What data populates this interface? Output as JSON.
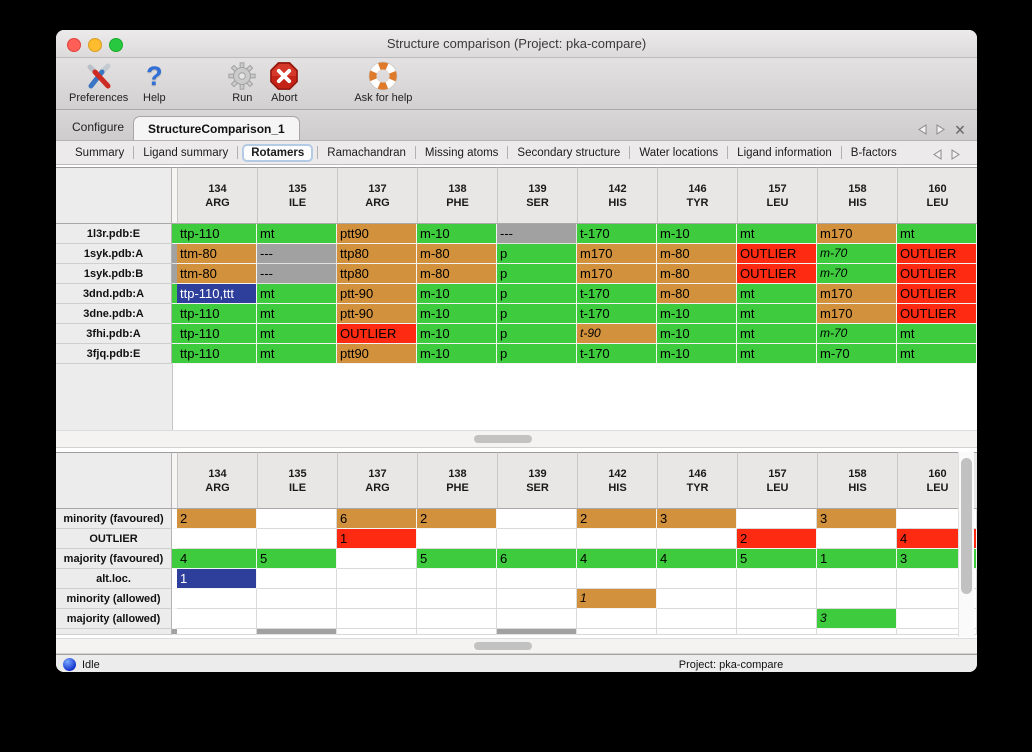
{
  "window": {
    "title": "Structure comparison (Project: pka-compare)"
  },
  "toolbar": {
    "items": [
      {
        "label": "Preferences",
        "icon": "tools-icon"
      },
      {
        "label": "Help",
        "icon": "question-icon"
      },
      {
        "label": "Run",
        "icon": "gear-icon"
      },
      {
        "label": "Abort",
        "icon": "abort-icon"
      },
      {
        "label": "Ask for help",
        "icon": "lifebuoy-icon"
      }
    ]
  },
  "tab_bar": {
    "tabs": [
      {
        "label": "Configure",
        "selected": false
      },
      {
        "label": "StructureComparison_1",
        "selected": true
      }
    ],
    "nav_icons": [
      "prev-arrow-icon",
      "next-arrow-icon",
      "close-icon"
    ]
  },
  "subtab_bar": {
    "tabs": [
      "Summary",
      "Ligand summary",
      "Rotamers",
      "Ramachandran",
      "Missing atoms",
      "Secondary structure",
      "Water locations",
      "Ligand information",
      "B-factors"
    ],
    "selected": "Rotamers",
    "nav_icons": [
      "prev-arrow-icon",
      "next-arrow-icon"
    ]
  },
  "columns": [
    {
      "number": "134",
      "residue": "ARG"
    },
    {
      "number": "135",
      "residue": "ILE"
    },
    {
      "number": "137",
      "residue": "ARG"
    },
    {
      "number": "138",
      "residue": "PHE"
    },
    {
      "number": "139",
      "residue": "SER"
    },
    {
      "number": "142",
      "residue": "HIS"
    },
    {
      "number": "146",
      "residue": "TYR"
    },
    {
      "number": "157",
      "residue": "LEU"
    },
    {
      "number": "158",
      "residue": "HIS"
    },
    {
      "number": "160",
      "residue": "LEU"
    }
  ],
  "rotamer_table": {
    "rows": [
      {
        "label": "1l3r.pdb:E",
        "edge": "green",
        "cells": [
          {
            "t": "ttp-110",
            "c": "green"
          },
          {
            "t": "mt",
            "c": "green"
          },
          {
            "t": "ptt90",
            "c": "orange"
          },
          {
            "t": "m-10",
            "c": "green"
          },
          {
            "t": "---",
            "c": "gray"
          },
          {
            "t": "t-170",
            "c": "green"
          },
          {
            "t": "m-10",
            "c": "green"
          },
          {
            "t": "mt",
            "c": "green"
          },
          {
            "t": "m170",
            "c": "orange"
          },
          {
            "t": "mt",
            "c": "green"
          }
        ]
      },
      {
        "label": "1syk.pdb:A",
        "edge": "gray",
        "cells": [
          {
            "t": "ttm-80",
            "c": "orange"
          },
          {
            "t": "---",
            "c": "gray"
          },
          {
            "t": "ttp80",
            "c": "orange"
          },
          {
            "t": "m-80",
            "c": "orange"
          },
          {
            "t": "p",
            "c": "green"
          },
          {
            "t": "m170",
            "c": "orange"
          },
          {
            "t": "m-80",
            "c": "orange"
          },
          {
            "t": "OUTLIER",
            "c": "red"
          },
          {
            "t": "m-70",
            "c": "green",
            "i": true
          },
          {
            "t": "OUTLIER",
            "c": "red"
          }
        ]
      },
      {
        "label": "1syk.pdb:B",
        "edge": "gray",
        "cells": [
          {
            "t": "ttm-80",
            "c": "orange"
          },
          {
            "t": "---",
            "c": "gray"
          },
          {
            "t": "ttp80",
            "c": "orange"
          },
          {
            "t": "m-80",
            "c": "orange"
          },
          {
            "t": "p",
            "c": "green"
          },
          {
            "t": "m170",
            "c": "orange"
          },
          {
            "t": "m-80",
            "c": "orange"
          },
          {
            "t": "OUTLIER",
            "c": "red"
          },
          {
            "t": "m-70",
            "c": "green",
            "i": true
          },
          {
            "t": "OUTLIER",
            "c": "red"
          }
        ]
      },
      {
        "label": "3dnd.pdb:A",
        "edge": "green",
        "cells": [
          {
            "t": "ttp-110,ttt",
            "c": "blue"
          },
          {
            "t": "mt",
            "c": "green"
          },
          {
            "t": "ptt-90",
            "c": "orange"
          },
          {
            "t": "m-10",
            "c": "green"
          },
          {
            "t": "p",
            "c": "green"
          },
          {
            "t": "t-170",
            "c": "green"
          },
          {
            "t": "m-80",
            "c": "orange"
          },
          {
            "t": "mt",
            "c": "green"
          },
          {
            "t": "m170",
            "c": "orange"
          },
          {
            "t": "OUTLIER",
            "c": "red"
          }
        ]
      },
      {
        "label": "3dne.pdb:A",
        "edge": "green",
        "cells": [
          {
            "t": "ttp-110",
            "c": "green"
          },
          {
            "t": "mt",
            "c": "green"
          },
          {
            "t": "ptt-90",
            "c": "orange"
          },
          {
            "t": "m-10",
            "c": "green"
          },
          {
            "t": "p",
            "c": "green"
          },
          {
            "t": "t-170",
            "c": "green"
          },
          {
            "t": "m-10",
            "c": "green"
          },
          {
            "t": "mt",
            "c": "green"
          },
          {
            "t": "m170",
            "c": "orange"
          },
          {
            "t": "OUTLIER",
            "c": "red"
          }
        ]
      },
      {
        "label": "3fhi.pdb:A",
        "edge": "green",
        "cells": [
          {
            "t": "ttp-110",
            "c": "green"
          },
          {
            "t": "mt",
            "c": "green"
          },
          {
            "t": "OUTLIER",
            "c": "red"
          },
          {
            "t": "m-10",
            "c": "green"
          },
          {
            "t": "p",
            "c": "green"
          },
          {
            "t": "t-90",
            "c": "orange",
            "i": true
          },
          {
            "t": "m-10",
            "c": "green"
          },
          {
            "t": "mt",
            "c": "green"
          },
          {
            "t": "m-70",
            "c": "green",
            "i": true
          },
          {
            "t": "mt",
            "c": "green"
          }
        ]
      },
      {
        "label": "3fjq.pdb:E",
        "edge": "green",
        "cells": [
          {
            "t": "ttp-110",
            "c": "green"
          },
          {
            "t": "mt",
            "c": "green"
          },
          {
            "t": "ptt90",
            "c": "orange"
          },
          {
            "t": "m-10",
            "c": "green"
          },
          {
            "t": "p",
            "c": "green"
          },
          {
            "t": "t-170",
            "c": "green"
          },
          {
            "t": "m-10",
            "c": "green"
          },
          {
            "t": "mt",
            "c": "green"
          },
          {
            "t": "m-70",
            "c": "green"
          },
          {
            "t": "mt",
            "c": "green"
          }
        ]
      }
    ]
  },
  "summary_table": {
    "rows": [
      {
        "label": "minority (favoured)",
        "edge": "white",
        "cells": [
          {
            "t": "2",
            "c": "orange"
          },
          {
            "t": "",
            "c": "white"
          },
          {
            "t": "6",
            "c": "orange"
          },
          {
            "t": "2",
            "c": "orange"
          },
          {
            "t": "",
            "c": "white"
          },
          {
            "t": "2",
            "c": "orange"
          },
          {
            "t": "3",
            "c": "orange"
          },
          {
            "t": "",
            "c": "white"
          },
          {
            "t": "3",
            "c": "orange"
          },
          {
            "t": "",
            "c": "white"
          }
        ]
      },
      {
        "label": "OUTLIER",
        "edge": "white",
        "cells": [
          {
            "t": "",
            "c": "white"
          },
          {
            "t": "",
            "c": "white"
          },
          {
            "t": "1",
            "c": "red"
          },
          {
            "t": "",
            "c": "white"
          },
          {
            "t": "",
            "c": "white"
          },
          {
            "t": "",
            "c": "white"
          },
          {
            "t": "",
            "c": "white"
          },
          {
            "t": "2",
            "c": "red"
          },
          {
            "t": "",
            "c": "white"
          },
          {
            "t": "4",
            "c": "red"
          }
        ]
      },
      {
        "label": "majority (favoured)",
        "edge": "green",
        "cells": [
          {
            "t": "4",
            "c": "green"
          },
          {
            "t": "5",
            "c": "green"
          },
          {
            "t": "",
            "c": "white"
          },
          {
            "t": "5",
            "c": "green"
          },
          {
            "t": "6",
            "c": "green"
          },
          {
            "t": "4",
            "c": "green"
          },
          {
            "t": "4",
            "c": "green"
          },
          {
            "t": "5",
            "c": "green"
          },
          {
            "t": "1",
            "c": "green"
          },
          {
            "t": "3",
            "c": "green"
          }
        ]
      },
      {
        "label": "alt.loc.",
        "edge": "white",
        "cells": [
          {
            "t": "1",
            "c": "blue"
          },
          {
            "t": "",
            "c": "white"
          },
          {
            "t": "",
            "c": "white"
          },
          {
            "t": "",
            "c": "white"
          },
          {
            "t": "",
            "c": "white"
          },
          {
            "t": "",
            "c": "white"
          },
          {
            "t": "",
            "c": "white"
          },
          {
            "t": "",
            "c": "white"
          },
          {
            "t": "",
            "c": "white"
          },
          {
            "t": "",
            "c": "white"
          }
        ]
      },
      {
        "label": "minority (allowed)",
        "edge": "white",
        "cells": [
          {
            "t": "",
            "c": "white"
          },
          {
            "t": "",
            "c": "white"
          },
          {
            "t": "",
            "c": "white"
          },
          {
            "t": "",
            "c": "white"
          },
          {
            "t": "",
            "c": "white"
          },
          {
            "t": "1",
            "c": "orange",
            "i": true
          },
          {
            "t": "",
            "c": "white"
          },
          {
            "t": "",
            "c": "white"
          },
          {
            "t": "",
            "c": "white"
          },
          {
            "t": "",
            "c": "white"
          }
        ]
      },
      {
        "label": "majority (allowed)",
        "edge": "white",
        "cells": [
          {
            "t": "",
            "c": "white"
          },
          {
            "t": "",
            "c": "white"
          },
          {
            "t": "",
            "c": "white"
          },
          {
            "t": "",
            "c": "white"
          },
          {
            "t": "",
            "c": "white"
          },
          {
            "t": "",
            "c": "white"
          },
          {
            "t": "",
            "c": "white"
          },
          {
            "t": "",
            "c": "white"
          },
          {
            "t": "3",
            "c": "green",
            "i": true
          },
          {
            "t": "",
            "c": "white"
          }
        ]
      }
    ],
    "partial_row": {
      "edge": "gray",
      "cells": [
        "white",
        "gray",
        "white",
        "white",
        "gray",
        "white",
        "white",
        "white",
        "white",
        "white"
      ]
    }
  },
  "status_bar": {
    "status": "Idle",
    "project": "Project: pka-compare"
  },
  "colors": {
    "green": "#3ecc3e",
    "orange": "#d2913c",
    "red": "#fe2b12",
    "blue": "#2e3e9b",
    "gray": "#a1a1a1"
  }
}
